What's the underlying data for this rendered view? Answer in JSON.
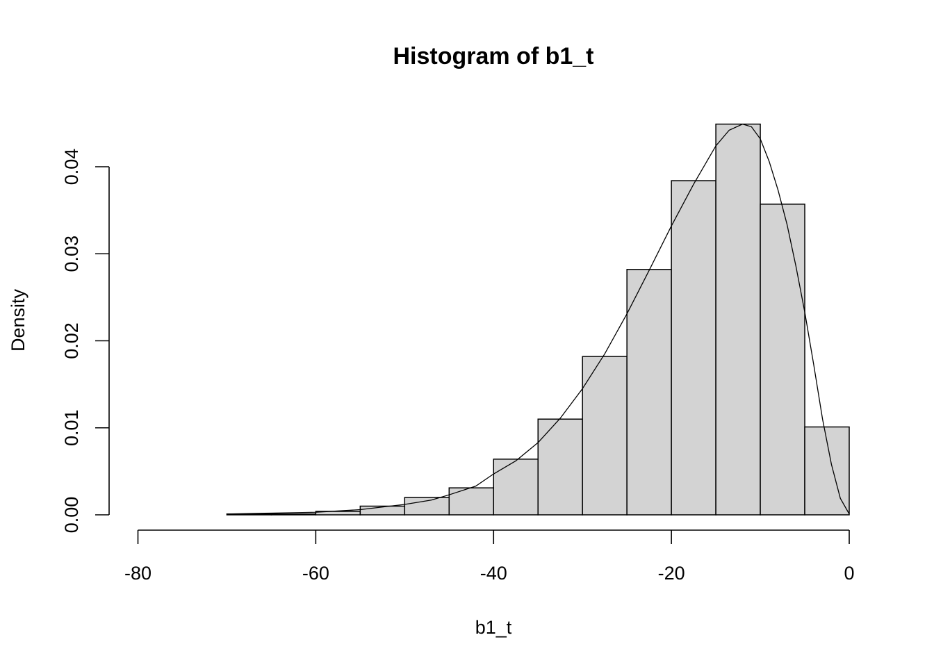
{
  "chart_data": {
    "type": "bar",
    "title": "Histogram of b1_t",
    "xlabel": "b1_t",
    "ylabel": "Density",
    "xlim": [
      -80,
      0
    ],
    "ylim": [
      0,
      0.045
    ],
    "grid": false,
    "x_ticks": [
      -80,
      -60,
      -40,
      -20,
      0
    ],
    "x_tick_labels": [
      "-80",
      "-60",
      "-40",
      "-20",
      "0"
    ],
    "y_ticks": [
      0,
      0.01,
      0.02,
      0.03,
      0.04
    ],
    "y_tick_labels": [
      "0.00",
      "0.01",
      "0.02",
      "0.03",
      "0.04"
    ],
    "bins": [
      {
        "start": -80,
        "end": -75,
        "density": 0.0
      },
      {
        "start": -75,
        "end": -70,
        "density": 0.0
      },
      {
        "start": -70,
        "end": -65,
        "density": 0.0001
      },
      {
        "start": -65,
        "end": -60,
        "density": 0.0001
      },
      {
        "start": -60,
        "end": -55,
        "density": 0.0004
      },
      {
        "start": -55,
        "end": -50,
        "density": 0.001
      },
      {
        "start": -50,
        "end": -45,
        "density": 0.002
      },
      {
        "start": -45,
        "end": -40,
        "density": 0.0031
      },
      {
        "start": -40,
        "end": -35,
        "density": 0.0064
      },
      {
        "start": -35,
        "end": -30,
        "density": 0.011
      },
      {
        "start": -30,
        "end": -25,
        "density": 0.0182
      },
      {
        "start": -25,
        "end": -20,
        "density": 0.0282
      },
      {
        "start": -20,
        "end": -15,
        "density": 0.0384
      },
      {
        "start": -15,
        "end": -10,
        "density": 0.0449
      },
      {
        "start": -10,
        "end": -5,
        "density": 0.0357
      },
      {
        "start": -5,
        "end": 0,
        "density": 0.0101
      }
    ],
    "density_curve": {
      "x": [
        -70,
        -65,
        -60,
        -55,
        -50,
        -47,
        -45,
        -42,
        -40,
        -37.5,
        -35,
        -32.5,
        -30,
        -27.5,
        -25,
        -22.5,
        -20,
        -17.5,
        -15,
        -13.5,
        -12,
        -11,
        -10,
        -9,
        -8,
        -7,
        -6,
        -5,
        -4,
        -3,
        -2,
        -1,
        0
      ],
      "y": [
        0.0001,
        0.0002,
        0.0003,
        0.0006,
        0.0012,
        0.0017,
        0.0023,
        0.0033,
        0.0047,
        0.0062,
        0.0083,
        0.0111,
        0.0145,
        0.0185,
        0.0231,
        0.0281,
        0.0332,
        0.038,
        0.0424,
        0.0442,
        0.0449,
        0.0446,
        0.0432,
        0.0406,
        0.0373,
        0.0334,
        0.0286,
        0.0233,
        0.0173,
        0.011,
        0.0058,
        0.0019,
        0.0001
      ]
    }
  }
}
